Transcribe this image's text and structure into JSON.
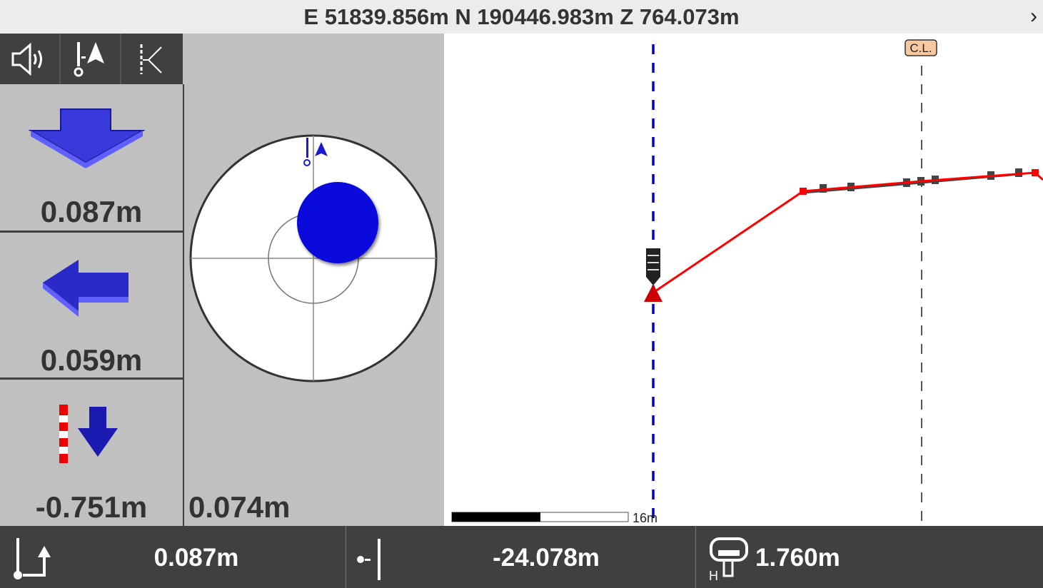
{
  "header": {
    "coordinates": "E 51839.856m N 190446.983m Z 764.073m",
    "expand_icon": "chevron-right-icon"
  },
  "toolbar": {
    "icons": [
      "speaker-icon",
      "pole-north-arrow-icon",
      "alignment-offset-icon"
    ]
  },
  "guidance": {
    "forward_back": {
      "value": "0.087m",
      "icon": "arrow-down-icon"
    },
    "left_right": {
      "value": "0.059m",
      "icon": "arrow-left-icon"
    },
    "cut_fill": {
      "value": "-0.751m",
      "icon": "pole-arrow-down-icon"
    }
  },
  "bullseye": {
    "distance": "0.074m",
    "colors": {
      "target": "#0a0adc"
    }
  },
  "cross_section": {
    "centerline_label": "C.L.",
    "scale_label": "16m",
    "colors": {
      "design": "#ff0000",
      "existing": "#444444",
      "position": "#0000cc"
    }
  },
  "status": {
    "vertical_offset": "0.087m",
    "horizontal_offset": "-24.078m",
    "antenna_height": "1.760m",
    "antenna_height_prefix": "H"
  }
}
